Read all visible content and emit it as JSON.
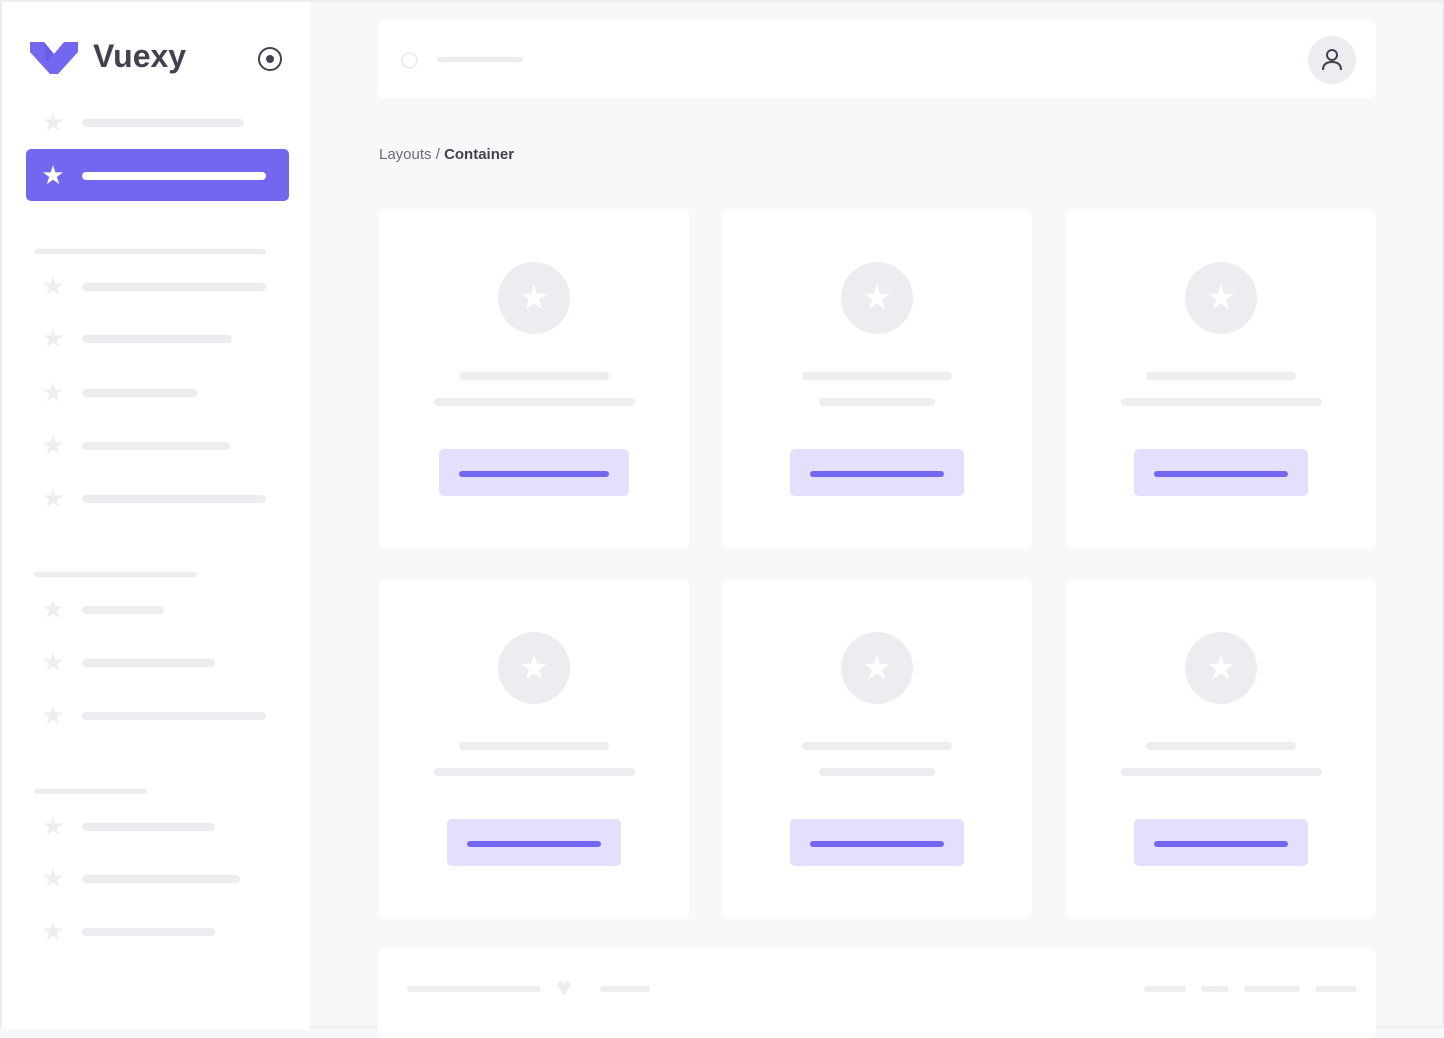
{
  "brand": {
    "name": "Vuexy",
    "color": "#7367f0"
  },
  "sidebar": {
    "toggle_icon": "radio-circle-icon",
    "item_icon": "star-icon",
    "active_index": 1
  },
  "header": {
    "search_icon": "search-icon",
    "avatar_icon": "user-icon"
  },
  "breadcrumb": {
    "parent": "Layouts",
    "separator": " / ",
    "current": "Container"
  },
  "cards": {
    "count": 6,
    "icon": "star-icon"
  },
  "footer": {
    "icon": "heart-icon"
  },
  "colors": {
    "primary": "#7367f0",
    "primary_light": "#e3dffc",
    "skeleton": "#ecedf1",
    "background": "#f8f8fa"
  }
}
